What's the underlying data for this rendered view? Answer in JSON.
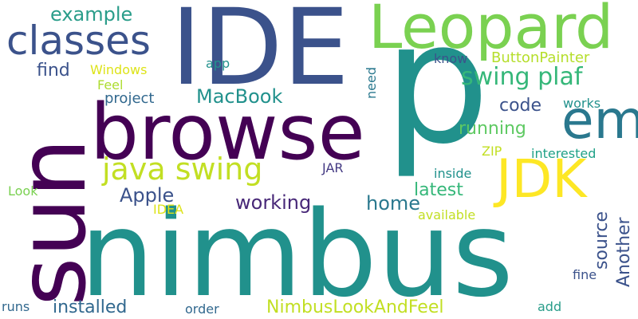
{
  "palette": {
    "dark_purple": "#440154",
    "indigo": "#3b528b",
    "teal": "#21918c",
    "sea_green": "#2a9d8a",
    "green": "#5ec962",
    "light_green": "#7ad151",
    "yellow": "#fde725",
    "yellow_green": "#c2df23"
  },
  "words": [
    {
      "text": "p",
      "color": "#21918c"
    },
    {
      "text": "nimbus",
      "color": "#21918c"
    },
    {
      "text": "sun",
      "color": "#440154"
    },
    {
      "text": "IDE",
      "color": "#3b528b"
    },
    {
      "text": "browse",
      "color": "#440154"
    },
    {
      "text": "Leopard",
      "color": "#7ad151"
    },
    {
      "text": "em",
      "color": "#2a788e"
    },
    {
      "text": "JDK",
      "color": "#fde725"
    },
    {
      "text": "classes",
      "color": "#3b528b"
    },
    {
      "text": "java swing",
      "color": "#c2df23"
    },
    {
      "text": "swing plaf",
      "color": "#35b779"
    },
    {
      "text": "example",
      "color": "#2a9d8a"
    },
    {
      "text": "MacBook",
      "color": "#21918c"
    },
    {
      "text": "Apple",
      "color": "#3b528b"
    },
    {
      "text": "working",
      "color": "#482878"
    },
    {
      "text": "home",
      "color": "#2a788e"
    },
    {
      "text": "latest",
      "color": "#35b779"
    },
    {
      "text": "running",
      "color": "#5ec962"
    },
    {
      "text": "code",
      "color": "#3b528b"
    },
    {
      "text": "find",
      "color": "#3b528b"
    },
    {
      "text": "project",
      "color": "#31688e"
    },
    {
      "text": "installed",
      "color": "#31688e"
    },
    {
      "text": "NimbusLookAndFeel",
      "color": "#c2df23"
    },
    {
      "text": "source",
      "color": "#3b528b"
    },
    {
      "text": "Another",
      "color": "#3b528b"
    },
    {
      "text": "ButtonPainter",
      "color": "#b5de2b"
    },
    {
      "text": "know",
      "color": "#3b528b"
    },
    {
      "text": "works",
      "color": "#21918c"
    },
    {
      "text": "interested",
      "color": "#1fa187"
    },
    {
      "text": "ZIP",
      "color": "#c2df23"
    },
    {
      "text": "inside",
      "color": "#21918c"
    },
    {
      "text": "JAR",
      "color": "#443a83"
    },
    {
      "text": "available",
      "color": "#c2df23"
    },
    {
      "text": "Windows",
      "color": "#dde318"
    },
    {
      "text": "Feel",
      "color": "#addc30"
    },
    {
      "text": "app",
      "color": "#21918c"
    },
    {
      "text": "need",
      "color": "#2a788e"
    },
    {
      "text": "Look",
      "color": "#7ad151"
    },
    {
      "text": "IDEA",
      "color": "#dde318"
    },
    {
      "text": "fine",
      "color": "#3b528b"
    },
    {
      "text": "runs",
      "color": "#31688e"
    },
    {
      "text": "order",
      "color": "#31688e"
    },
    {
      "text": "add",
      "color": "#2a9d8a"
    }
  ]
}
